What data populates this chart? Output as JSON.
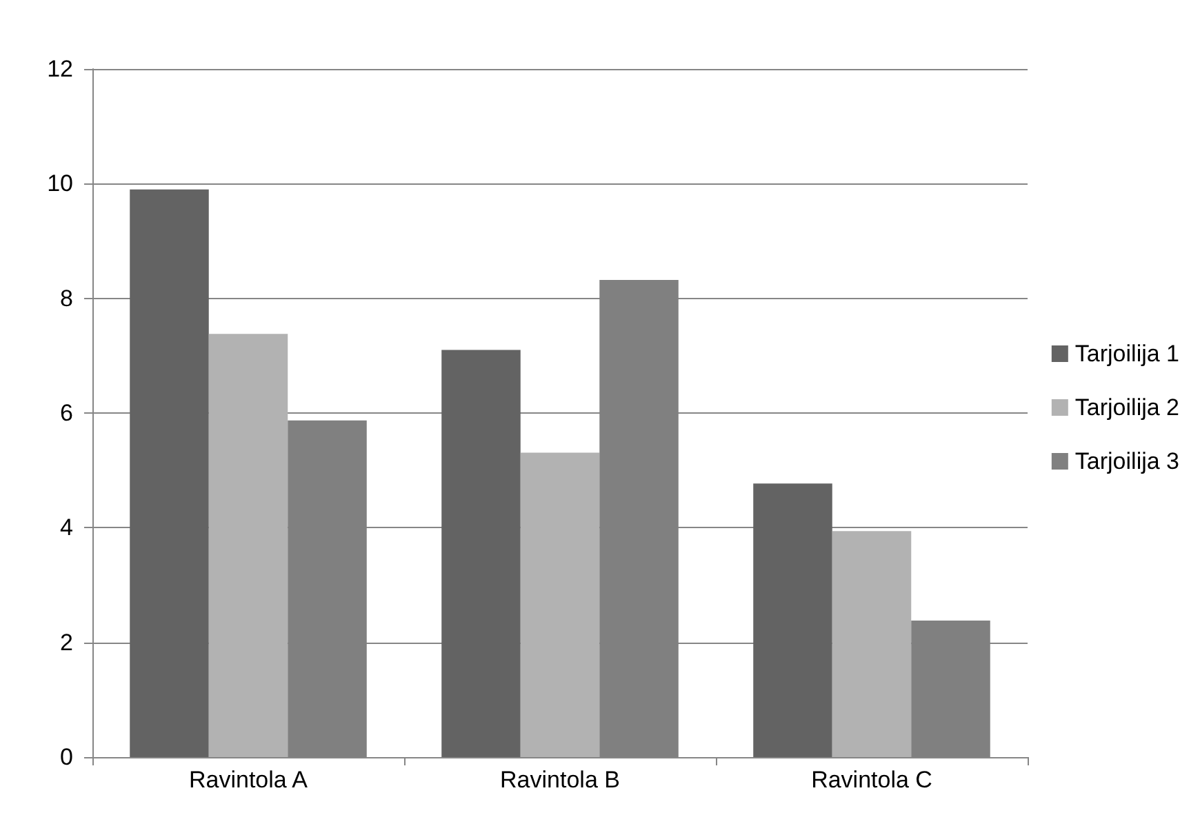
{
  "chart_data": {
    "type": "bar",
    "categories": [
      "Ravintola A",
      "Ravintola B",
      "Ravintola C"
    ],
    "series": [
      {
        "name": "Tarjoilija 1",
        "color": "#636363",
        "values": [
          9.9,
          7.1,
          4.77
        ]
      },
      {
        "name": "Tarjoilija 2",
        "color": "#b2b2b2",
        "values": [
          7.38,
          5.31,
          3.94
        ]
      },
      {
        "name": "Tarjoilija 3",
        "color": "#808080",
        "values": [
          5.87,
          8.32,
          2.38
        ]
      }
    ],
    "ylim": [
      0,
      12
    ],
    "yticks": [
      0,
      2,
      4,
      6,
      8,
      10,
      12
    ],
    "grid": "y",
    "legend": "right"
  }
}
